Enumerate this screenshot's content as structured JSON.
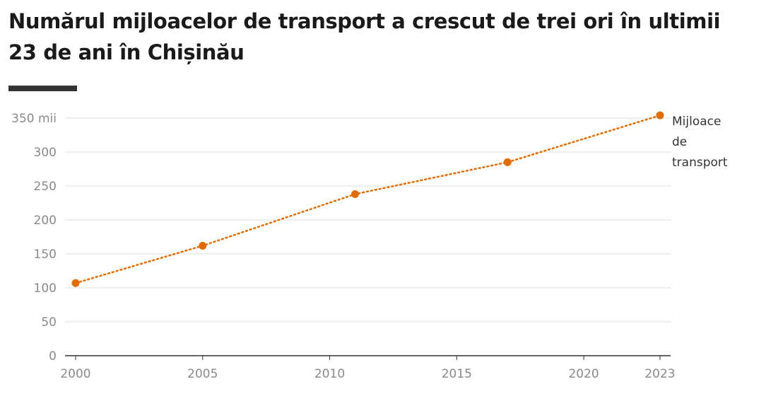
{
  "chart_data": {
    "type": "line",
    "title": "Numărul mijloacelor de transport a crescut de trei ori în ultimii 23 de ani în Chișinău",
    "xlabel": "",
    "ylabel": "",
    "x": [
      2000,
      2005,
      2011,
      2017,
      2023
    ],
    "series": [
      {
        "name": "Mijloace de transport",
        "label_lines": [
          "Mijloace",
          "de",
          "transport"
        ],
        "values": [
          107,
          162,
          238,
          285,
          354
        ]
      }
    ],
    "xlim": [
      2000,
      2023
    ],
    "ylim": [
      0,
      350
    ],
    "x_ticks": [
      2000,
      2005,
      2010,
      2015,
      2020,
      2023
    ],
    "y_ticks": [
      0,
      50,
      100,
      150,
      200,
      250,
      300,
      350
    ],
    "y_tick_labels": [
      "0",
      "50",
      "100",
      "150",
      "200",
      "250",
      "300",
      "350 mii"
    ],
    "grid": true,
    "line_style": "dotted",
    "colors": {
      "series": "#e06c00",
      "grid": "#dddddd",
      "axis": "#333333",
      "tick_text": "#8a8a8a",
      "title_text": "#1a1a1a"
    }
  }
}
